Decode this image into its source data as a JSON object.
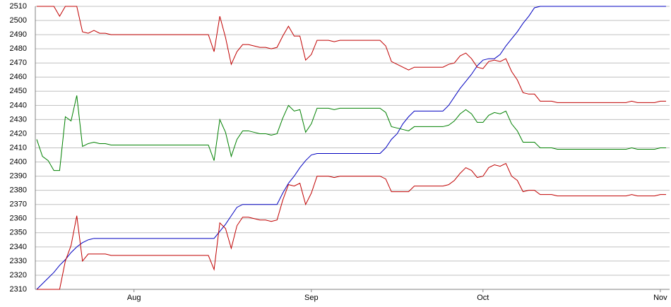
{
  "chart_data": {
    "type": "line",
    "categories": [
      null,
      null,
      null,
      null,
      null,
      null,
      null,
      null,
      null,
      null,
      null,
      null,
      null,
      null,
      null,
      null,
      null,
      "Aug",
      null,
      null,
      null,
      null,
      null,
      null,
      null,
      null,
      null,
      null,
      null,
      null,
      null,
      null,
      null,
      null,
      null,
      null,
      null,
      null,
      null,
      null,
      null,
      null,
      null,
      null,
      null,
      null,
      null,
      null,
      "Sep",
      null,
      null,
      null,
      null,
      null,
      null,
      null,
      null,
      null,
      null,
      null,
      null,
      null,
      null,
      null,
      null,
      null,
      null,
      null,
      null,
      null,
      null,
      null,
      null,
      null,
      null,
      null,
      null,
      null,
      "Oct",
      null,
      null,
      null,
      null,
      null,
      null,
      null,
      null,
      null,
      null,
      null,
      null,
      null,
      null,
      null,
      null,
      null,
      null,
      null,
      null,
      null,
      null,
      null,
      null,
      null,
      null,
      null,
      null,
      null,
      null,
      "Nov",
      null
    ],
    "series": [
      {
        "color": "#0000c0",
        "values": [
          2310,
          2314,
          2318,
          2322,
          2327,
          2331,
          2336,
          2340,
          2343,
          2345,
          2346,
          2346,
          2346,
          2346,
          2346,
          2346,
          2346,
          2346,
          2346,
          2346,
          2346,
          2346,
          2346,
          2346,
          2346,
          2346,
          2346,
          2346,
          2346,
          2346,
          2346,
          2346,
          2351,
          2356,
          2362,
          2368,
          2370,
          2370,
          2370,
          2370,
          2370,
          2370,
          2370,
          2378,
          2385,
          2390,
          2396,
          2401,
          2405,
          2406,
          2406,
          2406,
          2406,
          2406,
          2406,
          2406,
          2406,
          2406,
          2406,
          2406,
          2406,
          2410,
          2416,
          2420,
          2427,
          2432,
          2436,
          2436,
          2436,
          2436,
          2436,
          2436,
          2440,
          2446,
          2452,
          2457,
          2462,
          2468,
          2472,
          2473,
          2473,
          2476,
          2482,
          2487,
          2492,
          2498,
          2503,
          2509,
          2510,
          2510,
          2510,
          2510,
          2510,
          2510,
          2510,
          2510,
          2510,
          2510,
          2510,
          2510,
          2510,
          2510,
          2510,
          2510,
          2510,
          2510,
          2510,
          2510,
          2510,
          2510,
          2510
        ]
      },
      {
        "color": "#c00000",
        "values": [
          2510,
          2510,
          2510,
          2510,
          2503,
          2510,
          2510,
          2510,
          2492,
          2491,
          2493,
          2491,
          2491,
          2490,
          2490,
          2490,
          2490,
          2490,
          2490,
          2490,
          2490,
          2490,
          2490,
          2490,
          2490,
          2490,
          2490,
          2490,
          2490,
          2490,
          2490,
          2478,
          2503,
          2488,
          2469,
          2478,
          2483,
          2483,
          2482,
          2481,
          2481,
          2480,
          2481,
          2489,
          2496,
          2489,
          2489,
          2472,
          2476,
          2486,
          2486,
          2486,
          2485,
          2486,
          2486,
          2486,
          2486,
          2486,
          2486,
          2486,
          2486,
          2482,
          2471,
          2469,
          2467,
          2465,
          2467,
          2467,
          2467,
          2467,
          2467,
          2467,
          2469,
          2470,
          2475,
          2477,
          2473,
          2467,
          2466,
          2471,
          2472,
          2471,
          2473,
          2464,
          2458,
          2449,
          2448,
          2448,
          2443,
          2443,
          2443,
          2442,
          2442,
          2442,
          2442,
          2442,
          2442,
          2442,
          2442,
          2442,
          2442,
          2442,
          2442,
          2442,
          2443,
          2442,
          2442,
          2442,
          2442,
          2443,
          2443
        ]
      },
      {
        "color": "#008000",
        "values": [
          2416,
          2404,
          2401,
          2394,
          2394,
          2432,
          2429,
          2447,
          2411,
          2413,
          2414,
          2413,
          2413,
          2412,
          2412,
          2412,
          2412,
          2412,
          2412,
          2412,
          2412,
          2412,
          2412,
          2412,
          2412,
          2412,
          2412,
          2412,
          2412,
          2412,
          2412,
          2401,
          2430,
          2421,
          2404,
          2416,
          2422,
          2422,
          2421,
          2420,
          2420,
          2419,
          2420,
          2431,
          2440,
          2436,
          2437,
          2421,
          2427,
          2438,
          2438,
          2438,
          2437,
          2438,
          2438,
          2438,
          2438,
          2438,
          2438,
          2438,
          2438,
          2435,
          2425,
          2424,
          2423,
          2422,
          2425,
          2425,
          2425,
          2425,
          2425,
          2425,
          2426,
          2429,
          2434,
          2437,
          2434,
          2428,
          2428,
          2433,
          2435,
          2434,
          2436,
          2427,
          2422,
          2414,
          2414,
          2414,
          2410,
          2410,
          2410,
          2409,
          2409,
          2409,
          2409,
          2409,
          2409,
          2409,
          2409,
          2409,
          2409,
          2409,
          2409,
          2409,
          2410,
          2409,
          2409,
          2409,
          2409,
          2410,
          2410
        ]
      },
      {
        "color": "#c00000",
        "values": [
          2310,
          2310,
          2310,
          2310,
          2310,
          2330,
          2341,
          2362,
          2330,
          2335,
          2335,
          2335,
          2335,
          2334,
          2334,
          2334,
          2334,
          2334,
          2334,
          2334,
          2334,
          2334,
          2334,
          2334,
          2334,
          2334,
          2334,
          2334,
          2334,
          2334,
          2334,
          2324,
          2357,
          2353,
          2339,
          2355,
          2361,
          2361,
          2360,
          2359,
          2359,
          2358,
          2359,
          2373,
          2384,
          2383,
          2385,
          2370,
          2378,
          2390,
          2390,
          2390,
          2389,
          2390,
          2390,
          2390,
          2390,
          2390,
          2390,
          2390,
          2390,
          2388,
          2379,
          2379,
          2379,
          2379,
          2383,
          2383,
          2383,
          2383,
          2383,
          2383,
          2384,
          2387,
          2392,
          2396,
          2394,
          2389,
          2390,
          2396,
          2398,
          2397,
          2399,
          2390,
          2387,
          2379,
          2380,
          2380,
          2377,
          2377,
          2377,
          2376,
          2376,
          2376,
          2376,
          2376,
          2376,
          2376,
          2376,
          2376,
          2376,
          2376,
          2376,
          2376,
          2377,
          2376,
          2376,
          2376,
          2376,
          2377,
          2377
        ]
      }
    ],
    "ylim": [
      2310,
      2510
    ],
    "yticks": [
      2310,
      2320,
      2330,
      2340,
      2350,
      2360,
      2370,
      2380,
      2390,
      2400,
      2410,
      2420,
      2430,
      2440,
      2450,
      2460,
      2470,
      2480,
      2490,
      2500,
      2510
    ],
    "grid": true
  }
}
